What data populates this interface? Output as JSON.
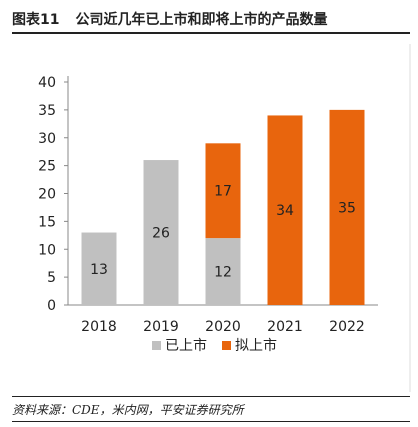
{
  "header": {
    "figure_label": "图表11",
    "title": "公司近几年已上市和即将上市的产品数量"
  },
  "source": "资料来源：CDE，米内网，平安证券研究所",
  "colors": {
    "listed": "#c0c0c0",
    "to_be_listed": "#e8650d"
  },
  "chart_data": {
    "type": "bar",
    "stacked": true,
    "categories": [
      "2018",
      "2019",
      "2020",
      "2021",
      "2022"
    ],
    "series": [
      {
        "name": "已上市",
        "values": [
          13,
          26,
          12,
          0,
          0
        ]
      },
      {
        "name": "拟上市",
        "values": [
          0,
          0,
          17,
          34,
          35
        ]
      }
    ],
    "ylim": [
      0,
      40
    ],
    "yticks": [
      0,
      5,
      10,
      15,
      20,
      25,
      30,
      35,
      40
    ],
    "grid": false,
    "legend_position": "bottom"
  }
}
